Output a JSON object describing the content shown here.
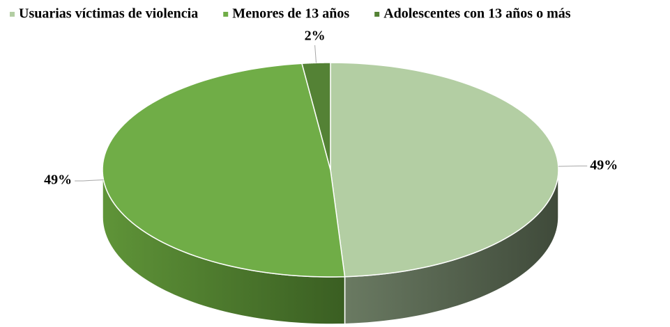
{
  "chart_data": {
    "type": "pie",
    "categories": [
      "Usuarias víctimas de violencia",
      "Menores de 13 años",
      "Adolescentes con 13 años o más"
    ],
    "values": [
      49,
      49,
      2
    ],
    "value_labels": [
      "49%",
      "49%",
      "2%"
    ],
    "colors": [
      "#b3cea3",
      "#70ad47",
      "#548235"
    ],
    "legend": "top"
  }
}
